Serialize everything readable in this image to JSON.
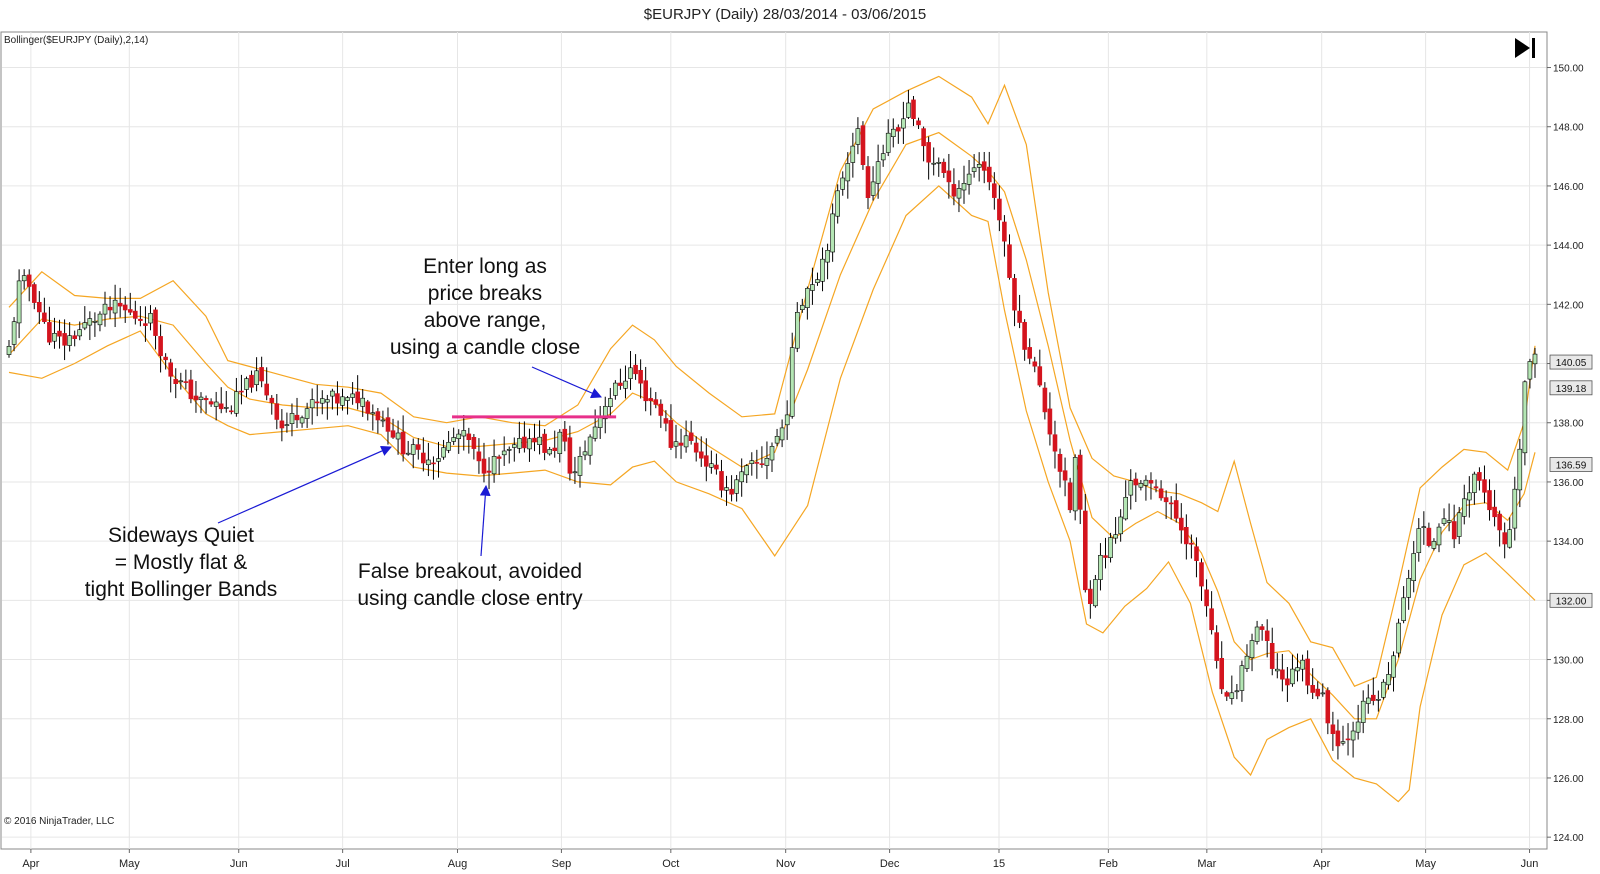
{
  "window": {
    "title": "$EURJPY (Daily)  28/03/2014 - 03/06/2015",
    "indicator_label": "Bollinger($EURJPY (Daily),2,14)",
    "copyright": "© 2016 NinjaTrader, LLC",
    "scroll_end_icon": "scroll-to-end-icon"
  },
  "colors": {
    "up_candle": "#b4e6b4",
    "down_candle": "#d4141e",
    "wick": "#000000",
    "band": "#f5a623",
    "breakout_line": "#e8308a",
    "arrow": "#1a1ad4",
    "grid": "#e6e6e6"
  },
  "chart_data": {
    "type": "candlestick",
    "title": "$EURJPY (Daily)  28/03/2014 - 03/06/2015",
    "indicator": "Bollinger($EURJPY (Daily),2,14)",
    "ylim": [
      123.6,
      151.2
    ],
    "y_ticks": [
      "150.00",
      "148.00",
      "146.00",
      "144.00",
      "142.00",
      "140.00",
      "138.00",
      "136.00",
      "134.00",
      "132.00",
      "130.00",
      "128.00",
      "126.00",
      "124.00"
    ],
    "x_ticks": [
      {
        "label": "Apr",
        "month": 0.2
      },
      {
        "label": "May",
        "month": 1.1
      },
      {
        "label": "Jun",
        "month": 2.1
      },
      {
        "label": "Jul",
        "month": 3.05
      },
      {
        "label": "Aug",
        "month": 4.1
      },
      {
        "label": "Sep",
        "month": 5.05
      },
      {
        "label": "Oct",
        "month": 6.05
      },
      {
        "label": "Nov",
        "month": 7.1
      },
      {
        "label": "Dec",
        "month": 8.05
      },
      {
        "label": "15",
        "month": 9.05
      },
      {
        "label": "Feb",
        "month": 10.05
      },
      {
        "label": "Mar",
        "month": 10.95
      },
      {
        "label": "Apr",
        "month": 12.0
      },
      {
        "label": "May",
        "month": 12.95
      },
      {
        "label": "Jun",
        "month": 13.9
      }
    ],
    "price_tags": [
      {
        "label": "140.05",
        "y": 140.05
      },
      {
        "label": "139.18",
        "y": 139.18
      },
      {
        "label": "136.59",
        "y": 136.59
      },
      {
        "label": "132.00",
        "y": 132.0
      }
    ],
    "close_path": [
      [
        0.0,
        140.5
      ],
      [
        0.1,
        142.8
      ],
      [
        0.2,
        142.6
      ],
      [
        0.35,
        141.0
      ],
      [
        0.5,
        140.7
      ],
      [
        0.7,
        141.3
      ],
      [
        0.9,
        141.8
      ],
      [
        1.0,
        141.9
      ],
      [
        1.15,
        141.6
      ],
      [
        1.3,
        141.5
      ],
      [
        1.45,
        139.8
      ],
      [
        1.6,
        139.2
      ],
      [
        1.75,
        138.7
      ],
      [
        1.9,
        138.6
      ],
      [
        2.0,
        138.4
      ],
      [
        2.1,
        138.9
      ],
      [
        2.25,
        139.6
      ],
      [
        2.4,
        138.8
      ],
      [
        2.5,
        137.8
      ],
      [
        2.65,
        138.4
      ],
      [
        2.8,
        138.6
      ],
      [
        2.95,
        138.8
      ],
      [
        3.1,
        138.7
      ],
      [
        3.2,
        138.9
      ],
      [
        3.3,
        138.5
      ],
      [
        3.45,
        138.0
      ],
      [
        3.6,
        137.2
      ],
      [
        3.75,
        136.9
      ],
      [
        3.9,
        136.8
      ],
      [
        4.0,
        137.2
      ],
      [
        4.1,
        137.6
      ],
      [
        4.2,
        137.4
      ],
      [
        4.3,
        136.5
      ],
      [
        4.4,
        136.6
      ],
      [
        4.55,
        136.9
      ],
      [
        4.7,
        137.3
      ],
      [
        4.8,
        137.6
      ],
      [
        4.95,
        136.9
      ],
      [
        5.05,
        137.7
      ],
      [
        5.15,
        136.1
      ],
      [
        5.3,
        137.4
      ],
      [
        5.45,
        138.7
      ],
      [
        5.6,
        139.4
      ],
      [
        5.7,
        139.9
      ],
      [
        5.8,
        139.0
      ],
      [
        5.95,
        138.5
      ],
      [
        6.05,
        137.3
      ],
      [
        6.2,
        137.5
      ],
      [
        6.35,
        136.8
      ],
      [
        6.5,
        136.0
      ],
      [
        6.6,
        135.7
      ],
      [
        6.75,
        136.4
      ],
      [
        6.9,
        136.7
      ],
      [
        7.0,
        137.4
      ],
      [
        7.1,
        138.0
      ],
      [
        7.2,
        141.8
      ],
      [
        7.3,
        142.6
      ],
      [
        7.4,
        143.1
      ],
      [
        7.5,
        144.3
      ],
      [
        7.6,
        146.1
      ],
      [
        7.75,
        148.0
      ],
      [
        7.85,
        145.8
      ],
      [
        7.95,
        146.9
      ],
      [
        8.05,
        147.6
      ],
      [
        8.15,
        147.9
      ],
      [
        8.2,
        149.1
      ],
      [
        8.3,
        148.0
      ],
      [
        8.4,
        146.8
      ],
      [
        8.5,
        146.9
      ],
      [
        8.6,
        145.8
      ],
      [
        8.75,
        146.2
      ],
      [
        8.85,
        146.9
      ],
      [
        8.95,
        146.4
      ],
      [
        9.05,
        145.0
      ],
      [
        9.15,
        142.8
      ],
      [
        9.25,
        141.0
      ],
      [
        9.35,
        140.2
      ],
      [
        9.5,
        138.0
      ],
      [
        9.6,
        136.6
      ],
      [
        9.7,
        135.1
      ],
      [
        9.75,
        136.9
      ],
      [
        9.8,
        134.6
      ],
      [
        9.85,
        131.6
      ],
      [
        9.95,
        133.2
      ],
      [
        10.05,
        133.8
      ],
      [
        10.15,
        134.5
      ],
      [
        10.25,
        136.2
      ],
      [
        10.35,
        135.8
      ],
      [
        10.5,
        135.9
      ],
      [
        10.6,
        135.2
      ],
      [
        10.7,
        134.6
      ],
      [
        10.8,
        133.9
      ],
      [
        10.95,
        131.8
      ],
      [
        11.05,
        129.5
      ],
      [
        11.15,
        128.3
      ],
      [
        11.25,
        129.4
      ],
      [
        11.35,
        130.6
      ],
      [
        11.45,
        131.0
      ],
      [
        11.55,
        129.8
      ],
      [
        11.7,
        129.2
      ],
      [
        11.8,
        130.1
      ],
      [
        11.9,
        129.1
      ],
      [
        12.0,
        128.8
      ],
      [
        12.1,
        127.5
      ],
      [
        12.2,
        127.2
      ],
      [
        12.3,
        127.9
      ],
      [
        12.4,
        128.5
      ],
      [
        12.5,
        128.6
      ],
      [
        12.6,
        129.3
      ],
      [
        12.7,
        131.0
      ],
      [
        12.8,
        133.0
      ],
      [
        12.9,
        134.5
      ],
      [
        13.0,
        133.8
      ],
      [
        13.1,
        135.1
      ],
      [
        13.2,
        134.1
      ],
      [
        13.3,
        135.4
      ],
      [
        13.4,
        136.3
      ],
      [
        13.5,
        135.6
      ],
      [
        13.6,
        134.4
      ],
      [
        13.7,
        133.6
      ],
      [
        13.75,
        135.0
      ],
      [
        13.8,
        136.6
      ],
      [
        13.85,
        139.2
      ],
      [
        13.9,
        140.05
      ]
    ],
    "upper_band": [
      [
        0.0,
        141.9
      ],
      [
        0.3,
        143.1
      ],
      [
        0.6,
        142.3
      ],
      [
        0.9,
        142.2
      ],
      [
        1.2,
        142.2
      ],
      [
        1.5,
        142.8
      ],
      [
        1.8,
        141.6
      ],
      [
        2.0,
        140.1
      ],
      [
        2.2,
        139.9
      ],
      [
        2.5,
        139.6
      ],
      [
        2.8,
        139.3
      ],
      [
        3.1,
        139.2
      ],
      [
        3.4,
        139.0
      ],
      [
        3.7,
        138.2
      ],
      [
        4.0,
        138.0
      ],
      [
        4.3,
        138.2
      ],
      [
        4.6,
        138.0
      ],
      [
        4.9,
        137.9
      ],
      [
        5.2,
        138.6
      ],
      [
        5.5,
        140.5
      ],
      [
        5.7,
        141.3
      ],
      [
        5.9,
        140.8
      ],
      [
        6.1,
        139.9
      ],
      [
        6.4,
        139.0
      ],
      [
        6.7,
        138.2
      ],
      [
        7.0,
        138.3
      ],
      [
        7.3,
        142.5
      ],
      [
        7.6,
        146.5
      ],
      [
        7.9,
        148.6
      ],
      [
        8.2,
        149.2
      ],
      [
        8.5,
        149.7
      ],
      [
        8.8,
        149.0
      ],
      [
        8.95,
        148.1
      ],
      [
        9.1,
        149.4
      ],
      [
        9.3,
        147.4
      ],
      [
        9.5,
        142.4
      ],
      [
        9.7,
        138.5
      ],
      [
        9.9,
        136.8
      ],
      [
        10.1,
        136.2
      ],
      [
        10.3,
        136.0
      ],
      [
        10.5,
        135.7
      ],
      [
        10.7,
        135.6
      ],
      [
        10.9,
        135.3
      ],
      [
        11.05,
        135.0
      ],
      [
        11.2,
        136.7
      ],
      [
        11.35,
        134.6
      ],
      [
        11.5,
        132.6
      ],
      [
        11.7,
        131.9
      ],
      [
        11.9,
        130.6
      ],
      [
        12.1,
        130.4
      ],
      [
        12.3,
        129.1
      ],
      [
        12.5,
        129.4
      ],
      [
        12.7,
        132.5
      ],
      [
        12.9,
        135.8
      ],
      [
        13.1,
        136.5
      ],
      [
        13.3,
        137.1
      ],
      [
        13.5,
        137.0
      ],
      [
        13.7,
        136.4
      ],
      [
        13.85,
        138.0
      ],
      [
        13.95,
        140.6
      ]
    ],
    "middle_band": [
      [
        0.0,
        140.3
      ],
      [
        0.3,
        141.5
      ],
      [
        0.6,
        141.3
      ],
      [
        0.9,
        141.5
      ],
      [
        1.2,
        141.6
      ],
      [
        1.5,
        141.3
      ],
      [
        1.8,
        140.0
      ],
      [
        2.0,
        139.2
      ],
      [
        2.2,
        138.8
      ],
      [
        2.5,
        138.6
      ],
      [
        2.8,
        138.5
      ],
      [
        3.1,
        138.5
      ],
      [
        3.4,
        138.2
      ],
      [
        3.7,
        137.5
      ],
      [
        4.0,
        137.2
      ],
      [
        4.3,
        137.2
      ],
      [
        4.6,
        137.3
      ],
      [
        4.9,
        137.4
      ],
      [
        5.2,
        137.7
      ],
      [
        5.5,
        138.3
      ],
      [
        5.7,
        139.0
      ],
      [
        5.9,
        138.7
      ],
      [
        6.1,
        138.0
      ],
      [
        6.4,
        137.2
      ],
      [
        6.7,
        136.5
      ],
      [
        7.0,
        137.0
      ],
      [
        7.3,
        139.8
      ],
      [
        7.6,
        143.0
      ],
      [
        7.9,
        145.5
      ],
      [
        8.2,
        147.4
      ],
      [
        8.5,
        147.8
      ],
      [
        8.8,
        147.0
      ],
      [
        8.95,
        146.5
      ],
      [
        9.1,
        145.8
      ],
      [
        9.3,
        143.5
      ],
      [
        9.5,
        140.6
      ],
      [
        9.7,
        137.4
      ],
      [
        9.9,
        134.8
      ],
      [
        10.1,
        134.1
      ],
      [
        10.3,
        134.6
      ],
      [
        10.5,
        135.0
      ],
      [
        10.7,
        134.6
      ],
      [
        10.9,
        133.6
      ],
      [
        11.05,
        132.3
      ],
      [
        11.2,
        130.6
      ],
      [
        11.35,
        130.0
      ],
      [
        11.5,
        130.2
      ],
      [
        11.7,
        130.3
      ],
      [
        11.9,
        129.5
      ],
      [
        12.1,
        128.8
      ],
      [
        12.3,
        128.0
      ],
      [
        12.5,
        128.0
      ],
      [
        12.7,
        130.0
      ],
      [
        12.9,
        132.7
      ],
      [
        13.1,
        134.3
      ],
      [
        13.3,
        135.2
      ],
      [
        13.5,
        135.3
      ],
      [
        13.7,
        134.7
      ],
      [
        13.85,
        135.6
      ],
      [
        13.95,
        137.0
      ]
    ],
    "lower_band": [
      [
        0.0,
        139.7
      ],
      [
        0.3,
        139.5
      ],
      [
        0.6,
        140.0
      ],
      [
        0.9,
        140.6
      ],
      [
        1.2,
        141.1
      ],
      [
        1.5,
        139.6
      ],
      [
        1.8,
        138.3
      ],
      [
        2.0,
        137.9
      ],
      [
        2.2,
        137.6
      ],
      [
        2.5,
        137.7
      ],
      [
        2.8,
        137.8
      ],
      [
        3.1,
        137.9
      ],
      [
        3.4,
        137.6
      ],
      [
        3.7,
        136.5
      ],
      [
        4.0,
        136.3
      ],
      [
        4.3,
        136.2
      ],
      [
        4.6,
        136.3
      ],
      [
        4.9,
        136.4
      ],
      [
        5.2,
        136.0
      ],
      [
        5.5,
        135.9
      ],
      [
        5.7,
        136.5
      ],
      [
        5.9,
        136.7
      ],
      [
        6.1,
        136.0
      ],
      [
        6.4,
        135.6
      ],
      [
        6.7,
        135.1
      ],
      [
        7.0,
        133.5
      ],
      [
        7.3,
        135.2
      ],
      [
        7.6,
        139.5
      ],
      [
        7.9,
        142.5
      ],
      [
        8.2,
        145.0
      ],
      [
        8.5,
        146.0
      ],
      [
        8.8,
        145.0
      ],
      [
        8.95,
        144.8
      ],
      [
        9.1,
        141.8
      ],
      [
        9.3,
        138.4
      ],
      [
        9.5,
        136.0
      ],
      [
        9.7,
        134.0
      ],
      [
        9.85,
        131.2
      ],
      [
        10.0,
        130.9
      ],
      [
        10.2,
        131.8
      ],
      [
        10.4,
        132.4
      ],
      [
        10.6,
        133.3
      ],
      [
        10.8,
        131.9
      ],
      [
        11.0,
        128.9
      ],
      [
        11.2,
        126.7
      ],
      [
        11.35,
        126.1
      ],
      [
        11.5,
        127.3
      ],
      [
        11.7,
        127.7
      ],
      [
        11.9,
        128.0
      ],
      [
        12.1,
        126.6
      ],
      [
        12.3,
        126.0
      ],
      [
        12.5,
        125.8
      ],
      [
        12.7,
        125.2
      ],
      [
        12.8,
        125.6
      ],
      [
        12.9,
        128.4
      ],
      [
        13.1,
        131.5
      ],
      [
        13.3,
        133.2
      ],
      [
        13.5,
        133.6
      ],
      [
        13.7,
        132.9
      ],
      [
        13.95,
        132.0
      ]
    ],
    "breakout_level": {
      "x_start": 4.05,
      "x_end": 5.55,
      "y": 138.2
    },
    "annotations": {
      "sideways": {
        "lines": [
          "Sideways Quiet",
          "= Mostly flat &",
          "tight Bollinger Bands"
        ]
      },
      "false_breakout": {
        "lines": [
          "False breakout, avoided",
          "using candle close entry"
        ]
      },
      "enter_long": {
        "lines": [
          "Enter long as",
          "price breaks",
          "above range,",
          "using a candle close"
        ]
      }
    }
  }
}
